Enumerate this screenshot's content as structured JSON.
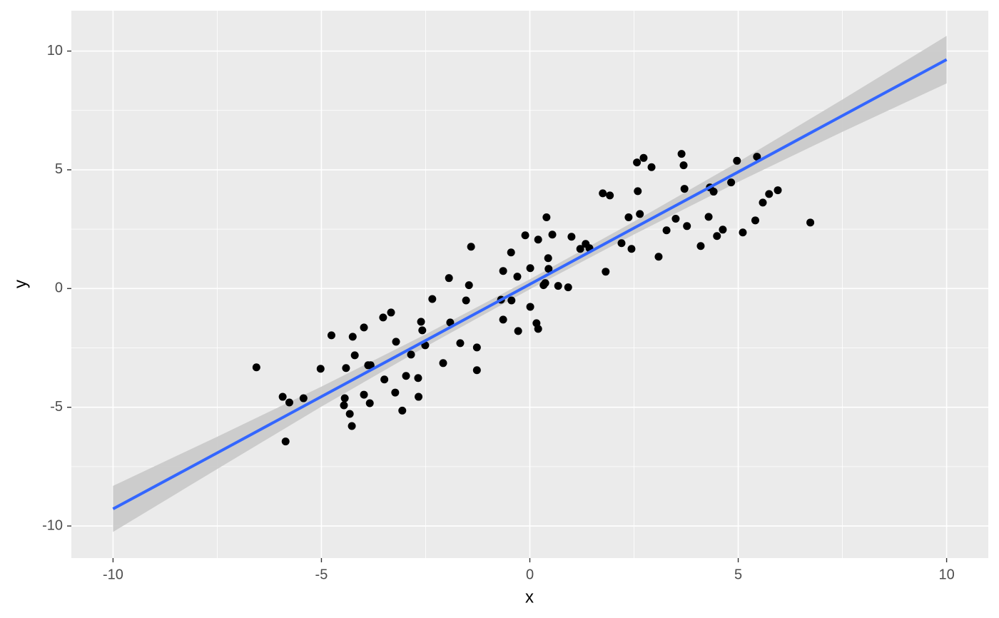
{
  "chart_data": {
    "type": "scatter",
    "x_label": "x",
    "y_label": "y",
    "xlim": [
      -11,
      11
    ],
    "ylim": [
      -11.35,
      11.7
    ],
    "xticks": [
      -10,
      -5,
      0,
      5,
      10
    ],
    "yticks": [
      -10,
      -5,
      0,
      5,
      10
    ],
    "xminor": [
      -7.5,
      -2.5,
      2.5,
      7.5
    ],
    "yminor": [
      -7.5,
      -2.5,
      2.5,
      7.5
    ],
    "grid": true,
    "panel_color": "#ebebeb",
    "grid_color": "#ffffff",
    "points": {
      "color": "#000000",
      "x": [
        -6.56,
        -5.93,
        -5.77,
        -5.86,
        -5.43,
        -5.02,
        -4.76,
        -4.41,
        -4.44,
        -4.46,
        -4.32,
        -4.27,
        -4.25,
        -4.2,
        -3.98,
        -3.98,
        -3.88,
        -3.82,
        -3.84,
        -3.52,
        -3.49,
        -3.33,
        -3.21,
        -3.23,
        -3.06,
        -2.97,
        -2.85,
        -2.68,
        -2.67,
        -2.61,
        -2.58,
        -2.51,
        -2.34,
        -2.08,
        -1.94,
        -1.91,
        -1.67,
        -1.53,
        -1.46,
        -1.41,
        -1.27,
        -1.27,
        -0.69,
        -0.64,
        -0.64,
        -0.45,
        -0.44,
        -0.3,
        -0.28,
        -0.11,
        0.01,
        0.01,
        0.16,
        0.2,
        0.2,
        0.33,
        0.37,
        0.4,
        0.44,
        0.45,
        0.54,
        0.68,
        0.92,
        1.0,
        1.21,
        1.34,
        1.43,
        1.75,
        1.82,
        1.92,
        2.2,
        2.37,
        2.44,
        2.57,
        2.59,
        2.64,
        2.73,
        2.92,
        3.09,
        3.28,
        3.5,
        3.64,
        3.69,
        3.71,
        3.77,
        4.1,
        4.29,
        4.32,
        4.41,
        4.49,
        4.63,
        4.83,
        4.97,
        5.11,
        5.41,
        5.45,
        5.59,
        5.74,
        5.95,
        6.73
      ],
      "y": [
        -3.32,
        -4.56,
        -4.8,
        -6.44,
        -4.62,
        -3.38,
        -1.97,
        -3.35,
        -4.62,
        -4.92,
        -5.28,
        -5.79,
        -2.03,
        -2.81,
        -1.64,
        -4.47,
        -3.23,
        -3.23,
        -4.83,
        -1.22,
        -3.83,
        -1.01,
        -2.24,
        -4.38,
        -5.14,
        -3.68,
        -2.78,
        -3.77,
        -4.56,
        -1.4,
        -1.76,
        -2.39,
        -0.44,
        -3.14,
        0.44,
        -1.43,
        -2.3,
        -0.5,
        0.14,
        1.76,
        -2.48,
        -3.44,
        -0.47,
        0.74,
        -1.31,
        1.52,
        -0.5,
        0.5,
        -1.79,
        2.24,
        0.86,
        -0.77,
        -1.46,
        -1.7,
        2.06,
        0.14,
        0.23,
        3.0,
        1.28,
        0.83,
        2.27,
        0.11,
        0.05,
        2.18,
        1.67,
        1.88,
        1.7,
        4.01,
        0.71,
        3.92,
        1.91,
        3.0,
        1.67,
        5.31,
        4.1,
        3.14,
        5.5,
        5.11,
        1.34,
        2.45,
        2.94,
        5.67,
        5.19,
        4.2,
        2.63,
        1.79,
        3.02,
        4.26,
        4.08,
        2.21,
        2.48,
        4.47,
        5.38,
        2.36,
        2.87,
        5.55,
        3.62,
        3.98,
        4.14,
        2.78
      ]
    },
    "smooth": {
      "color": "#3366ff",
      "band_color": "#c9c9c9",
      "x": [
        -10,
        -7.5,
        -5,
        -2.5,
        0,
        2.5,
        5,
        7.5,
        10
      ],
      "y": [
        -9.28,
        -6.92,
        -4.55,
        -2.19,
        0.18,
        2.55,
        4.91,
        7.28,
        9.64
      ],
      "ymin": [
        -10.25,
        -7.6,
        -4.97,
        -2.45,
        -0.03,
        2.28,
        4.49,
        6.6,
        8.64
      ],
      "ymax": [
        -8.31,
        -6.24,
        -4.13,
        -1.93,
        0.39,
        2.82,
        5.33,
        7.96,
        10.64
      ]
    }
  }
}
